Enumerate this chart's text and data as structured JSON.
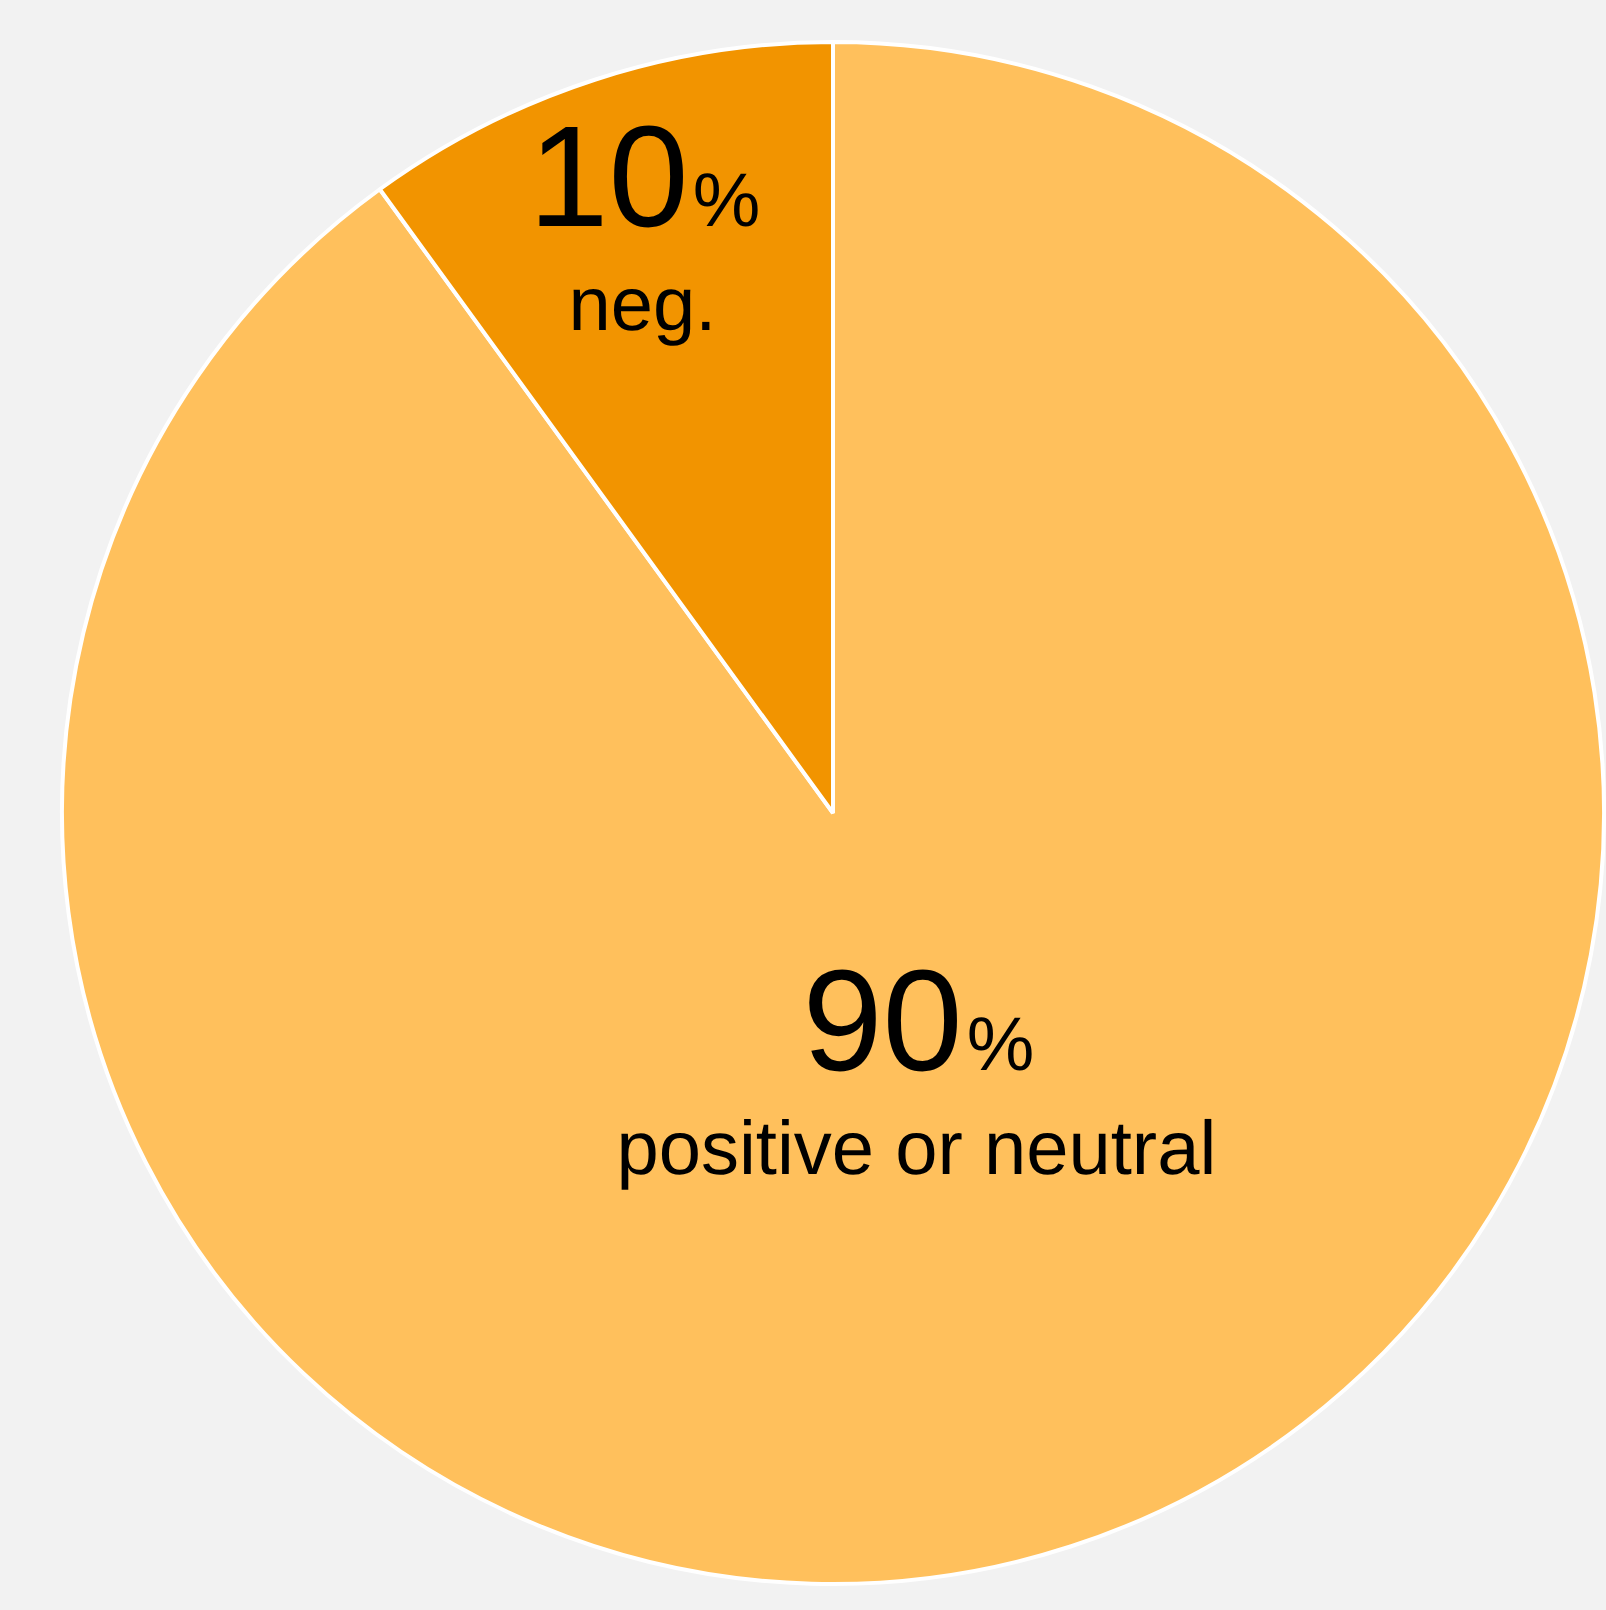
{
  "chart_data": {
    "type": "pie",
    "categories": [
      "positive or neutral",
      "neg."
    ],
    "values": [
      90,
      10
    ],
    "colors": [
      "#ffc05c",
      "#f29400"
    ],
    "value_labels": [
      "90%",
      "10%"
    ],
    "legend": false
  }
}
